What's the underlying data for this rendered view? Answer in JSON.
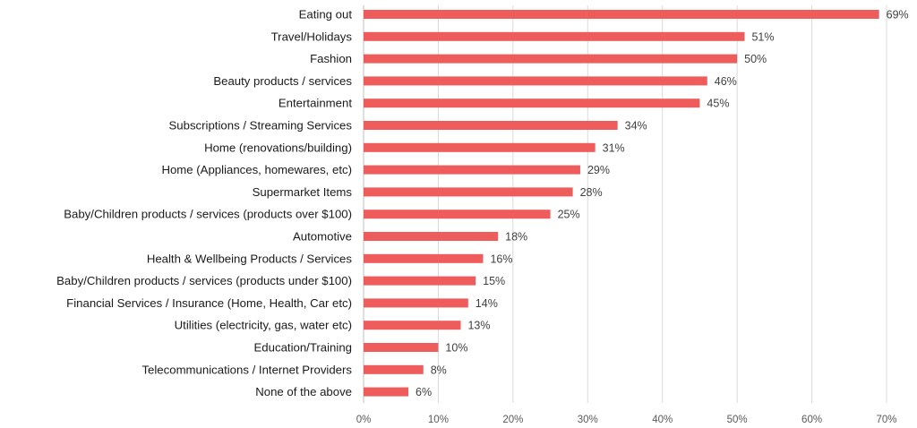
{
  "chart_data": {
    "type": "bar",
    "orientation": "horizontal",
    "title": "",
    "xlabel": "",
    "ylabel": "",
    "xlim": [
      0,
      70
    ],
    "grid": true,
    "legend": "none",
    "bar_color": "#ee5c5c",
    "ticks": [
      "0%",
      "10%",
      "20%",
      "30%",
      "40%",
      "50%",
      "60%",
      "70%"
    ],
    "tick_values": [
      0,
      10,
      20,
      30,
      40,
      50,
      60,
      70
    ],
    "categories": [
      "Eating out",
      "Travel/Holidays",
      "Fashion",
      "Beauty products / services",
      "Entertainment",
      "Subscriptions / Streaming Services",
      "Home (renovations/building)",
      "Home (Appliances, homewares, etc)",
      "Supermarket Items",
      "Baby/Children products / services (products over $100)",
      "Automotive",
      "Health & Wellbeing Products / Services",
      "Baby/Children products / services (products under $100)",
      "Financial Services / Insurance (Home, Health, Car etc)",
      "Utilities (electricity, gas, water etc)",
      "Education/Training",
      "Telecommunications / Internet Providers",
      "None of the above"
    ],
    "values": [
      69,
      51,
      50,
      46,
      45,
      34,
      31,
      29,
      28,
      25,
      18,
      16,
      15,
      14,
      13,
      10,
      8,
      6
    ],
    "value_labels": [
      "69%",
      "51%",
      "50%",
      "46%",
      "45%",
      "34%",
      "31%",
      "29%",
      "28%",
      "25%",
      "18%",
      "16%",
      "15%",
      "14%",
      "13%",
      "10%",
      "8%",
      "6%"
    ]
  }
}
